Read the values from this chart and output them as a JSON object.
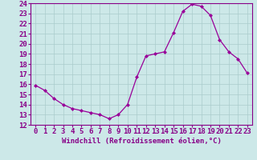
{
  "x": [
    0,
    1,
    2,
    3,
    4,
    5,
    6,
    7,
    8,
    9,
    10,
    11,
    12,
    13,
    14,
    15,
    16,
    17,
    18,
    19,
    20,
    21,
    22,
    23
  ],
  "y": [
    15.9,
    15.4,
    14.6,
    14.0,
    13.6,
    13.4,
    13.2,
    13.0,
    12.6,
    13.0,
    14.0,
    16.7,
    18.8,
    19.0,
    19.2,
    21.1,
    23.2,
    23.9,
    23.7,
    22.8,
    20.4,
    19.2,
    18.5,
    17.1
  ],
  "line_color": "#990099",
  "marker": "D",
  "marker_size": 2.0,
  "bg_color": "#cce8e8",
  "grid_color": "#aacccc",
  "xlabel": "Windchill (Refroidissement éolien,°C)",
  "ylim": [
    12,
    24
  ],
  "xlim_min": -0.5,
  "xlim_max": 23.5,
  "yticks": [
    12,
    13,
    14,
    15,
    16,
    17,
    18,
    19,
    20,
    21,
    22,
    23,
    24
  ],
  "xticks": [
    0,
    1,
    2,
    3,
    4,
    5,
    6,
    7,
    8,
    9,
    10,
    11,
    12,
    13,
    14,
    15,
    16,
    17,
    18,
    19,
    20,
    21,
    22,
    23
  ],
  "tick_color": "#880088",
  "spine_color": "#880088",
  "label_fontsize": 6.5,
  "tick_fontsize": 6.5
}
